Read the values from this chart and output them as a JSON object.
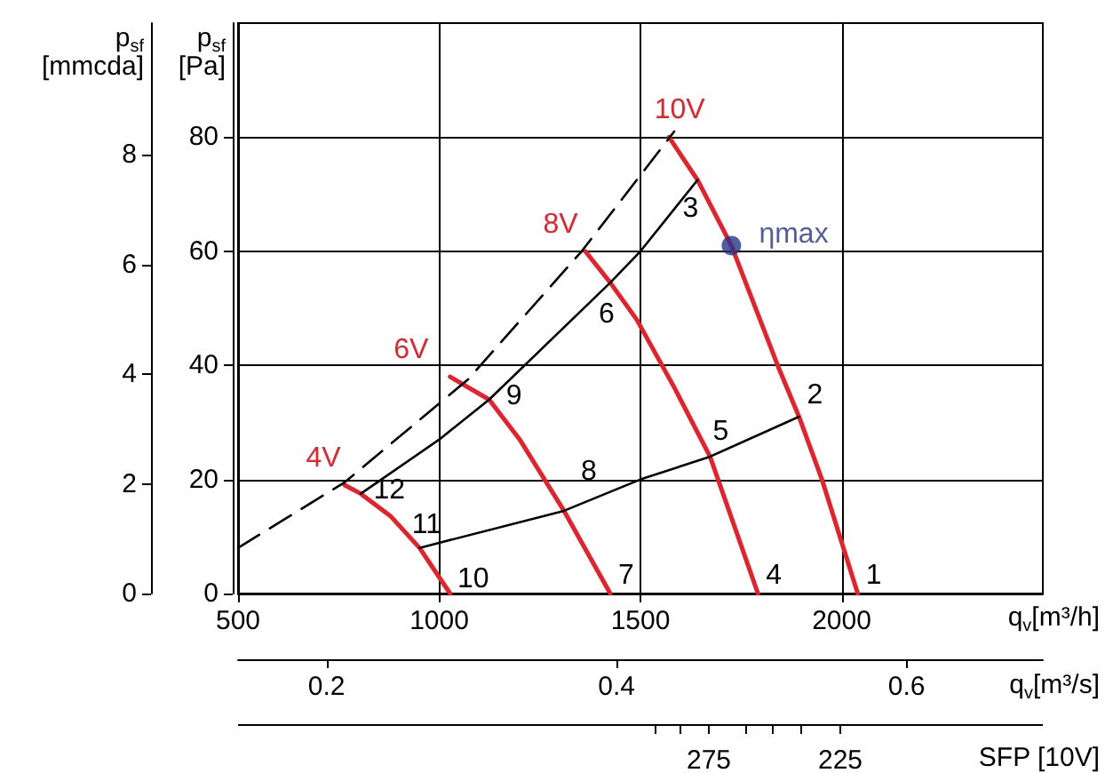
{
  "chart_data": {
    "type": "line",
    "xlabel": "q$_{v}$[m³/h]",
    "ylabel": "p$_{sf}$ [Pa]",
    "y2label": "p$_{sf}$ [mmcda]",
    "x2label": "q$_{v}$[m³/s]",
    "xlim": [
      500,
      2500
    ],
    "xticks": [
      500,
      1000,
      1500,
      2000
    ],
    "ylim": [
      0,
      100
    ],
    "yticks": [
      0,
      20,
      40,
      60,
      80
    ],
    "y2lim": [
      0,
      10.4
    ],
    "y2ticks": [
      0,
      2,
      4,
      6,
      8
    ],
    "x2lim": [
      0.139,
      0.694
    ],
    "x2ticks": [
      0.2,
      0.4,
      0.6
    ],
    "grid": true,
    "marker": "none",
    "series": [
      {
        "name": "10V",
        "color": "#e8202a",
        "x": [
          1571,
          1642,
          1726,
          1841,
          1894,
          1951,
          2040
        ],
        "values": [
          80,
          72.5,
          61,
          40,
          31,
          20,
          0
        ]
      },
      {
        "name": "8V",
        "color": "#e8202a",
        "x": [
          1363,
          1425,
          1491,
          1585,
          1673,
          1792
        ],
        "values": [
          60,
          54.5,
          48,
          36,
          24,
          0
        ]
      },
      {
        "name": "6V",
        "color": "#e8202a",
        "x": [
          1027,
          1124,
          1200,
          1310,
          1425
        ],
        "values": [
          38,
          34,
          27,
          14.5,
          0
        ]
      },
      {
        "name": "4V",
        "color": "#e8202a",
        "x": [
          765,
          805,
          880,
          951,
          1027
        ],
        "values": [
          19,
          17.5,
          13.5,
          8,
          0
        ]
      },
      {
        "color": "#000000",
        "x": [
          805,
          1000,
          1124,
          1425,
          1500,
          1642
        ],
        "values": [
          17.5,
          27,
          34,
          54.5,
          60,
          72.5
        ],
        "line_style": "solid"
      },
      {
        "color": "#000000",
        "x": [
          951,
          1310,
          1500,
          1673,
          1894
        ],
        "values": [
          8,
          14.5,
          20,
          24,
          31
        ],
        "line_style": "solid"
      },
      {
        "color": "#000000",
        "x": [
          500,
          765,
          1071,
          1354,
          1584
        ],
        "values": [
          8,
          19.5,
          37.5,
          60,
          81
        ],
        "line_style": "dashed"
      },
      {
        "name": "ηmax",
        "type": "scatter",
        "marker": "circle",
        "color": "#26338a",
        "x": [
          1726
        ],
        "values": [
          61
        ]
      }
    ],
    "annotations": [
      {
        "text": "1",
        "x": 2040,
        "y": 0
      },
      {
        "text": "2",
        "x": 1894,
        "y": 31
      },
      {
        "text": "3",
        "x": 1642,
        "y": 72.5
      },
      {
        "text": "4",
        "x": 1792,
        "y": 0
      },
      {
        "text": "5",
        "x": 1673,
        "y": 24
      },
      {
        "text": "6",
        "x": 1425,
        "y": 54.5
      },
      {
        "text": "7",
        "x": 1425,
        "y": 0
      },
      {
        "text": "8",
        "x": 1310,
        "y": 14.5
      },
      {
        "text": "9",
        "x": 1124,
        "y": 34
      },
      {
        "text": "10",
        "x": 1027,
        "y": 0
      },
      {
        "text": "11",
        "x": 951,
        "y": 8
      },
      {
        "text": "12",
        "x": 805,
        "y": 17.5
      },
      "SFP [10V]",
      "275",
      "225"
    ]
  }
}
